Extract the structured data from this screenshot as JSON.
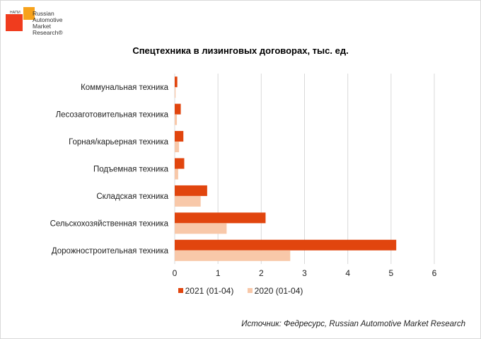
{
  "logo": {
    "small_text": "НАПИ",
    "lines": [
      "Russian",
      "Automotive",
      "Market",
      "Research®"
    ]
  },
  "source": "Источник: Федресурс, Russian Automotive Market Research",
  "colors": {
    "series2021": "#e1450e",
    "series2020": "#f8c8a9",
    "grid": "#d9d9d9"
  },
  "chart_data": {
    "type": "bar",
    "orientation": "horizontal",
    "title": "Спецтехника в лизинговых договорах, тыс. ед.",
    "categories": [
      "Коммунальная техника",
      "Лесозаготовительная техника",
      "Горная/карьерная техника",
      "Подъемная техника",
      "Складская техника",
      "Сельскохозяйственная техника",
      "Дорожностроительная техника"
    ],
    "series": [
      {
        "name": "2021 (01-04)",
        "values": [
          0.06,
          0.14,
          0.2,
          0.22,
          0.75,
          2.1,
          5.12
        ]
      },
      {
        "name": "2020 (01-04)",
        "values": [
          0.02,
          0.05,
          0.1,
          0.08,
          0.6,
          1.2,
          2.67
        ]
      }
    ],
    "xlim": [
      0,
      6
    ],
    "xticks": [
      0,
      1,
      2,
      3,
      4,
      5,
      6
    ],
    "grid": true,
    "legend_position": "bottom"
  }
}
